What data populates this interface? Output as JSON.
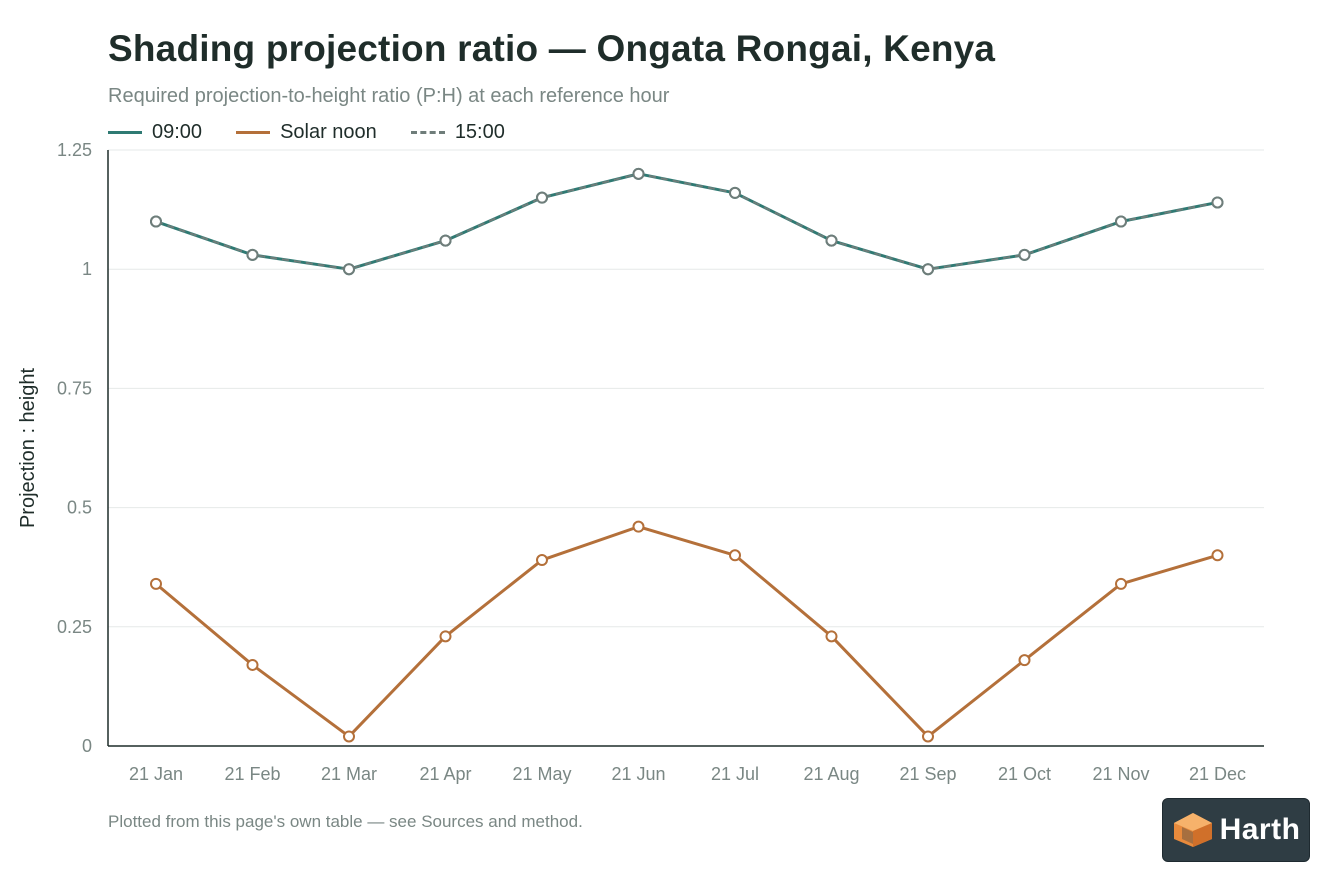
{
  "title": "Shading projection ratio — Ongata Rongai, Kenya",
  "subtitle": "Required projection-to-height ratio (P:H) at each reference hour",
  "footnote": "Plotted from this page's own table — see Sources and method.",
  "logo": {
    "text": "Harth",
    "accent": "#f2a65a"
  },
  "legend": [
    {
      "label": "09:00",
      "color": "#2f7a73",
      "dash": false
    },
    {
      "label": "Solar noon",
      "color": "#b4703a",
      "dash": false
    },
    {
      "label": "15:00",
      "color": "#6f7d7a",
      "dash": true
    }
  ],
  "chart_data": {
    "type": "line",
    "title": "Shading projection ratio — Ongata Rongai, Kenya",
    "subtitle": "Required projection-to-height ratio (P:H) at each reference hour",
    "xlabel": "",
    "ylabel": "Projection : height",
    "ylim": [
      0,
      1.25
    ],
    "yticks": [
      0,
      0.25,
      0.5,
      0.75,
      1,
      1.25
    ],
    "ytick_labels": [
      "0",
      "0.25",
      "0.5",
      "0.75",
      "1",
      "1.25"
    ],
    "grid": true,
    "legend_position": "top-left",
    "categories": [
      "21 Jan",
      "21 Feb",
      "21 Mar",
      "21 Apr",
      "21 May",
      "21 Jun",
      "21 Jul",
      "21 Aug",
      "21 Sep",
      "21 Oct",
      "21 Nov",
      "21 Dec"
    ],
    "series": [
      {
        "name": "09:00",
        "color": "#2f7a73",
        "dash": false,
        "values": [
          1.1,
          1.03,
          1.0,
          1.06,
          1.15,
          1.2,
          1.16,
          1.06,
          1.0,
          1.03,
          1.1,
          1.14
        ]
      },
      {
        "name": "Solar noon",
        "color": "#b4703a",
        "dash": false,
        "values": [
          0.34,
          0.17,
          0.02,
          0.23,
          0.39,
          0.46,
          0.4,
          0.23,
          0.02,
          0.18,
          0.34,
          0.4
        ]
      },
      {
        "name": "15:00",
        "color": "#6f7d7a",
        "dash": true,
        "values": [
          1.1,
          1.03,
          1.0,
          1.06,
          1.15,
          1.2,
          1.16,
          1.06,
          1.0,
          1.03,
          1.1,
          1.14
        ]
      }
    ]
  }
}
